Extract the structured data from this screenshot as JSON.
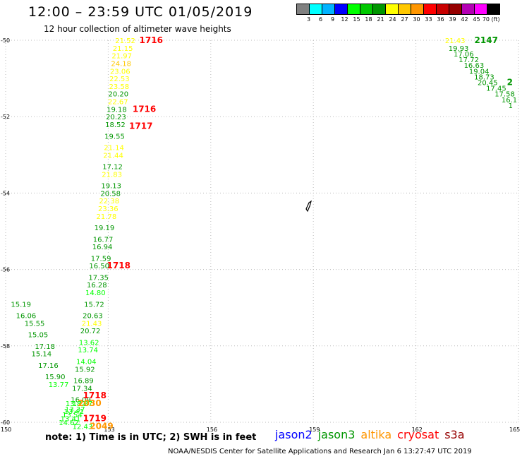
{
  "header": {
    "title": "12:00 – 23:59 UTC 01/05/2019",
    "subtitle": "12 hour collection of altimeter wave heights"
  },
  "legend": {
    "colors": [
      "#808080",
      "#00ffff",
      "#00b3ff",
      "#0000ff",
      "#00ff00",
      "#00c800",
      "#009600",
      "#ffff00",
      "#ffc800",
      "#ff9600",
      "#ff0000",
      "#c80000",
      "#960000",
      "#b400b4",
      "#ff00ff",
      "#000000"
    ],
    "labels": [
      "3",
      "6",
      "9",
      "12",
      "15",
      "18",
      "21",
      "24",
      "27",
      "30",
      "33",
      "36",
      "39",
      "42",
      "45",
      "70 (ft)"
    ]
  },
  "axes": {
    "lat_ticks": [
      "-50",
      "-52",
      "-54",
      "-56",
      "-58",
      "-60"
    ],
    "lon_ticks": [
      "150",
      "153",
      "156",
      "159",
      "162",
      "165"
    ]
  },
  "chart_data": {
    "type": "scatter",
    "xlabel": "",
    "ylabel": "",
    "xlim": [
      150,
      165
    ],
    "ylim": [
      -60,
      -50
    ],
    "swh_points": [
      {
        "lon": 153.45,
        "lat": -50.0,
        "swh": "21.52",
        "color": "#ffff00"
      },
      {
        "lon": 153.38,
        "lat": -50.2,
        "swh": "21.15",
        "color": "#ffff00"
      },
      {
        "lon": 153.35,
        "lat": -50.4,
        "swh": "21.97",
        "color": "#ffff00"
      },
      {
        "lon": 153.33,
        "lat": -50.6,
        "swh": "24.18",
        "color": "#ffc800"
      },
      {
        "lon": 153.3,
        "lat": -50.8,
        "swh": "23.06",
        "color": "#ffff00"
      },
      {
        "lon": 153.28,
        "lat": -51.0,
        "swh": "22.53",
        "color": "#ffff00"
      },
      {
        "lon": 153.27,
        "lat": -51.2,
        "swh": "23.58",
        "color": "#ffff00"
      },
      {
        "lon": 153.25,
        "lat": -51.4,
        "swh": "20.20",
        "color": "#009600"
      },
      {
        "lon": 153.24,
        "lat": -51.6,
        "swh": "22.67",
        "color": "#ffff00"
      },
      {
        "lon": 153.2,
        "lat": -51.8,
        "swh": "19.18",
        "color": "#009600"
      },
      {
        "lon": 153.18,
        "lat": -52.0,
        "swh": "20.23",
        "color": "#009600"
      },
      {
        "lon": 153.16,
        "lat": -52.2,
        "swh": "18.52",
        "color": "#009600"
      },
      {
        "lon": 153.14,
        "lat": -52.5,
        "swh": "19.55",
        "color": "#009600"
      },
      {
        "lon": 153.12,
        "lat": -52.8,
        "swh": "21.14",
        "color": "#ffff00"
      },
      {
        "lon": 153.1,
        "lat": -53.0,
        "swh": "21.44",
        "color": "#ffff00"
      },
      {
        "lon": 153.08,
        "lat": -53.3,
        "swh": "17.12",
        "color": "#009600"
      },
      {
        "lon": 153.06,
        "lat": -53.5,
        "swh": "21.83",
        "color": "#ffff00"
      },
      {
        "lon": 153.04,
        "lat": -53.8,
        "swh": "19.13",
        "color": "#009600"
      },
      {
        "lon": 153.02,
        "lat": -54.0,
        "swh": "20.58",
        "color": "#009600"
      },
      {
        "lon": 152.98,
        "lat": -54.2,
        "swh": "22.38",
        "color": "#ffff00"
      },
      {
        "lon": 152.95,
        "lat": -54.4,
        "swh": "23.36",
        "color": "#ffff00"
      },
      {
        "lon": 152.9,
        "lat": -54.6,
        "swh": "21.78",
        "color": "#ffff00"
      },
      {
        "lon": 152.84,
        "lat": -54.9,
        "swh": "19.19",
        "color": "#009600"
      },
      {
        "lon": 152.8,
        "lat": -55.2,
        "swh": "16.77",
        "color": "#009600"
      },
      {
        "lon": 152.78,
        "lat": -55.4,
        "swh": "16.94",
        "color": "#009600"
      },
      {
        "lon": 152.74,
        "lat": -55.7,
        "swh": "17.59",
        "color": "#009600"
      },
      {
        "lon": 152.69,
        "lat": -55.9,
        "swh": "16.50",
        "color": "#009600"
      },
      {
        "lon": 152.67,
        "lat": -56.2,
        "swh": "17.35",
        "color": "#009600"
      },
      {
        "lon": 152.62,
        "lat": -56.4,
        "swh": "16.28",
        "color": "#009600"
      },
      {
        "lon": 152.58,
        "lat": -56.6,
        "swh": "14.80",
        "color": "#00ff00"
      },
      {
        "lon": 152.54,
        "lat": -56.9,
        "swh": "15.72",
        "color": "#009600"
      },
      {
        "lon": 152.5,
        "lat": -57.2,
        "swh": "20.63",
        "color": "#009600"
      },
      {
        "lon": 152.47,
        "lat": -57.4,
        "swh": "21.43",
        "color": "#ffff00"
      },
      {
        "lon": 152.43,
        "lat": -57.6,
        "swh": "20.72",
        "color": "#009600"
      },
      {
        "lon": 152.39,
        "lat": -57.9,
        "swh": "13.62",
        "color": "#00ff00"
      },
      {
        "lon": 152.36,
        "lat": -58.1,
        "swh": "13.74",
        "color": "#00ff00"
      },
      {
        "lon": 152.31,
        "lat": -58.4,
        "swh": "14.04",
        "color": "#00ff00"
      },
      {
        "lon": 152.27,
        "lat": -58.6,
        "swh": "15.92",
        "color": "#009600"
      },
      {
        "lon": 152.23,
        "lat": -58.9,
        "swh": "16.89",
        "color": "#009600"
      },
      {
        "lon": 152.19,
        "lat": -59.1,
        "swh": "17.34",
        "color": "#009600"
      },
      {
        "lon": 152.15,
        "lat": -59.4,
        "swh": "16.09",
        "color": "#009600"
      },
      {
        "lon": 152.0,
        "lat": -59.5,
        "swh": "13.82",
        "color": "#00ff00"
      },
      {
        "lon": 151.98,
        "lat": -59.65,
        "swh": "13.37",
        "color": "#00ff00"
      },
      {
        "lon": 151.95,
        "lat": -59.7,
        "swh": "13.41",
        "color": "#00ff00"
      },
      {
        "lon": 151.9,
        "lat": -59.8,
        "swh": "13.54",
        "color": "#00ff00"
      },
      {
        "lon": 151.85,
        "lat": -59.9,
        "swh": "13.41",
        "color": "#00ff00"
      },
      {
        "lon": 151.8,
        "lat": -60.0,
        "swh": "14.62",
        "color": "#00ff00"
      },
      {
        "lon": 152.2,
        "lat": -59.5,
        "swh": "13.87",
        "color": "#00ff00"
      },
      {
        "lon": 152.2,
        "lat": -60.1,
        "swh": "12.43",
        "color": "#00ff00"
      },
      {
        "lon": 150.4,
        "lat": -56.9,
        "swh": "15.19",
        "color": "#009600"
      },
      {
        "lon": 150.55,
        "lat": -57.2,
        "swh": "16.06",
        "color": "#009600"
      },
      {
        "lon": 150.8,
        "lat": -57.4,
        "swh": "15.55",
        "color": "#009600"
      },
      {
        "lon": 150.9,
        "lat": -57.7,
        "swh": "15.05",
        "color": "#009600"
      },
      {
        "lon": 151.1,
        "lat": -58.0,
        "swh": "17.18",
        "color": "#009600"
      },
      {
        "lon": 151.0,
        "lat": -58.2,
        "swh": "15.14",
        "color": "#009600"
      },
      {
        "lon": 151.2,
        "lat": -58.5,
        "swh": "17.16",
        "color": "#009600"
      },
      {
        "lon": 151.4,
        "lat": -58.8,
        "swh": "15.90",
        "color": "#009600"
      },
      {
        "lon": 151.5,
        "lat": -59.0,
        "swh": "13.77",
        "color": "#00ff00"
      },
      {
        "lon": 163.1,
        "lat": -50.0,
        "swh": "21.43",
        "color": "#ffff00"
      },
      {
        "lon": 163.2,
        "lat": -50.2,
        "swh": "19.93",
        "color": "#009600"
      },
      {
        "lon": 163.35,
        "lat": -50.35,
        "swh": "17.06",
        "color": "#009600"
      },
      {
        "lon": 163.5,
        "lat": -50.5,
        "swh": "17.72",
        "color": "#009600"
      },
      {
        "lon": 163.65,
        "lat": -50.65,
        "swh": "16.63",
        "color": "#009600"
      },
      {
        "lon": 163.8,
        "lat": -50.8,
        "swh": "19.04",
        "color": "#009600"
      },
      {
        "lon": 163.95,
        "lat": -50.95,
        "swh": "18.73",
        "color": "#009600"
      },
      {
        "lon": 164.05,
        "lat": -51.1,
        "swh": "20.45",
        "color": "#009600"
      },
      {
        "lon": 164.3,
        "lat": -51.25,
        "swh": "17.45",
        "color": "#009600"
      },
      {
        "lon": 164.55,
        "lat": -51.4,
        "swh": "17.58",
        "color": "#009600"
      },
      {
        "lon": 164.75,
        "lat": -51.55,
        "swh": "16.1",
        "color": "#009600"
      },
      {
        "lon": 164.95,
        "lat": -51.7,
        "swh": "1",
        "color": "#009600"
      }
    ],
    "time_labels": [
      {
        "lon": 154.2,
        "lat": -50.0,
        "text": "1716",
        "color": "#ff0000"
      },
      {
        "lon": 154.0,
        "lat": -51.8,
        "text": "1716",
        "color": "#ff0000"
      },
      {
        "lon": 153.9,
        "lat": -52.25,
        "text": "1717",
        "color": "#ff0000"
      },
      {
        "lon": 153.25,
        "lat": -55.9,
        "text": "1718",
        "color": "#ff0000"
      },
      {
        "lon": 152.55,
        "lat": -59.3,
        "text": "1718",
        "color": "#ff0000"
      },
      {
        "lon": 152.4,
        "lat": -59.5,
        "text": "2030",
        "color": "#ff9600"
      },
      {
        "lon": 152.55,
        "lat": -59.9,
        "text": "1719",
        "color": "#ff0000"
      },
      {
        "lon": 152.75,
        "lat": -60.1,
        "text": "2049",
        "color": "#ff9600"
      },
      {
        "lon": 164.0,
        "lat": -50.0,
        "text": "2147",
        "color": "#009600"
      },
      {
        "lon": 164.95,
        "lat": -51.1,
        "text": "2",
        "color": "#009600"
      }
    ]
  },
  "footer": {
    "note": "note: 1) Time is in UTC; 2) SWH is in feet",
    "satellites": [
      {
        "name": "jason2",
        "color": "#0000ff"
      },
      {
        "name": "jason3",
        "color": "#009600"
      },
      {
        "name": "altika",
        "color": "#ff9600"
      },
      {
        "name": "cryosat",
        "color": "#ff0000"
      },
      {
        "name": "s3a",
        "color": "#960000"
      }
    ],
    "credit": "NOAA/NESDIS Center for Satellite Applications and Research   Jan  6 13:27:47 UTC 2019"
  }
}
